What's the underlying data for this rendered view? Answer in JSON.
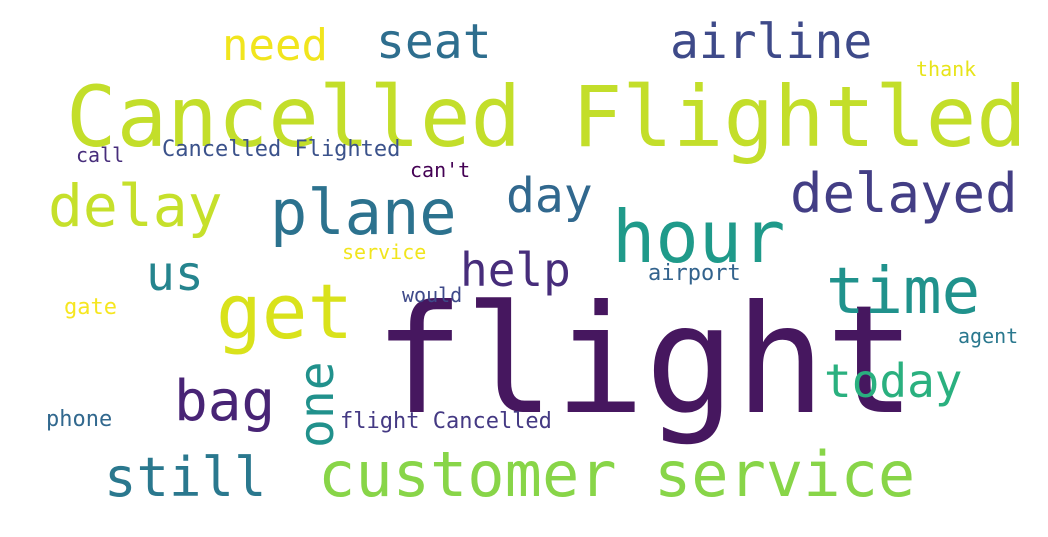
{
  "words": [
    {
      "text": "flight",
      "color": "#46175f"
    },
    {
      "text": "Cancelled Flightled",
      "color": "#c3de2a"
    },
    {
      "text": "customer service",
      "color": "#88d548"
    },
    {
      "text": "hour",
      "color": "#1f9a8a"
    },
    {
      "text": "plane",
      "color": "#2c728e"
    },
    {
      "text": "get",
      "color": "#d9e21b"
    },
    {
      "text": "time",
      "color": "#20928c"
    },
    {
      "text": "delay",
      "color": "#c6e02b"
    },
    {
      "text": "delayed",
      "color": "#433e85"
    },
    {
      "text": "airline",
      "color": "#3e4a89"
    },
    {
      "text": "seat",
      "color": "#2e6e8e"
    },
    {
      "text": "need",
      "color": "#f1e51d"
    },
    {
      "text": "day",
      "color": "#31688e"
    },
    {
      "text": "us",
      "color": "#25848e"
    },
    {
      "text": "help",
      "color": "#472d7b"
    },
    {
      "text": "bag",
      "color": "#482475"
    },
    {
      "text": "one",
      "color": "#21918c"
    },
    {
      "text": "today",
      "color": "#2ab07f"
    },
    {
      "text": "still",
      "color": "#2a788e"
    },
    {
      "text": "thank",
      "color": "#e7e419"
    },
    {
      "text": "call",
      "color": "#472d7b"
    },
    {
      "text": "Cancelled Flighted",
      "color": "#3b528b"
    },
    {
      "text": "can't",
      "color": "#440154"
    },
    {
      "text": "service",
      "color": "#f1e51d"
    },
    {
      "text": "airport",
      "color": "#33638d"
    },
    {
      "text": "would",
      "color": "#3e4989"
    },
    {
      "text": "gate",
      "color": "#f6e620"
    },
    {
      "text": "agent",
      "color": "#2a788e"
    },
    {
      "text": "phone",
      "color": "#31688e"
    },
    {
      "text": "flight Cancelled",
      "color": "#443983"
    }
  ]
}
